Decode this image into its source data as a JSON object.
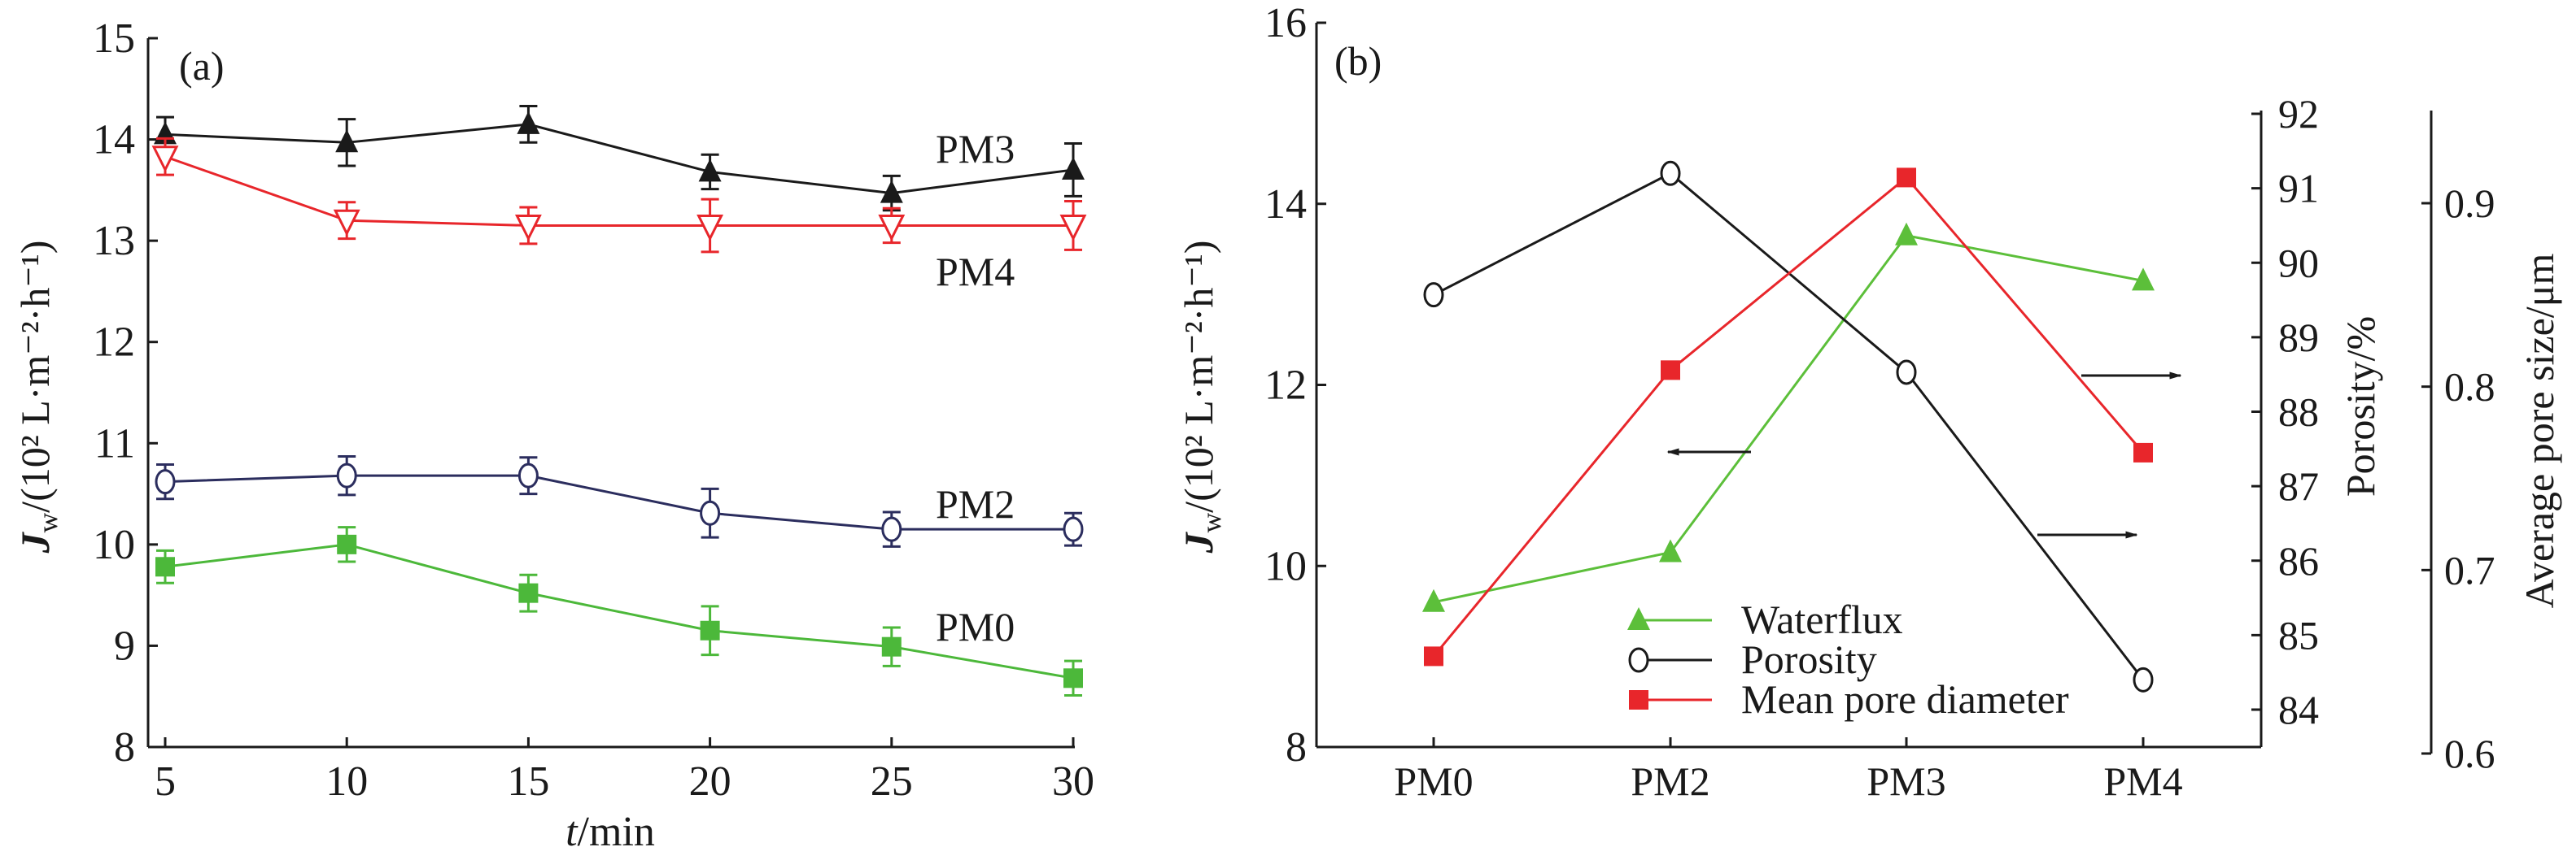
{
  "chart_data": [
    {
      "type": "line",
      "panel_label": "(a)",
      "xlabel_italic": "t",
      "xlabel_rest": "/min",
      "ylabel_italic": "J",
      "ylabel_sub": "w",
      "ylabel_rest": "/(10² L·m⁻²·h⁻¹)",
      "x": [
        5,
        10,
        15,
        20,
        25,
        30
      ],
      "xticks": [
        "5",
        "10",
        "15",
        "20",
        "25",
        "30"
      ],
      "ylim": [
        8,
        15
      ],
      "yticks": [
        "8",
        "9",
        "10",
        "11",
        "12",
        "13",
        "14",
        "15"
      ],
      "grid": false,
      "series": [
        {
          "name": "PM3",
          "color": "#1a1a1a",
          "marker": "triangle-up-filled",
          "values": [
            14.05,
            13.97,
            14.15,
            13.68,
            13.47,
            13.7
          ],
          "errors": [
            0.17,
            0.23,
            0.18,
            0.17,
            0.17,
            0.26
          ]
        },
        {
          "name": "PM4",
          "color": "#e8262b",
          "marker": "triangle-down-open",
          "values": [
            13.83,
            13.2,
            13.15,
            13.15,
            13.15,
            13.15
          ],
          "errors": [
            0.18,
            0.18,
            0.18,
            0.26,
            0.17,
            0.24
          ]
        },
        {
          "name": "PM2",
          "color": "#2b2d5e",
          "marker": "circle-open",
          "values": [
            10.62,
            10.68,
            10.68,
            10.31,
            10.15,
            10.15
          ],
          "errors": [
            0.17,
            0.19,
            0.18,
            0.24,
            0.17,
            0.16
          ]
        },
        {
          "name": "PM0",
          "color": "#4cb83a",
          "marker": "square-filled",
          "values": [
            9.78,
            10.0,
            9.52,
            9.15,
            8.99,
            8.68
          ],
          "errors": [
            0.16,
            0.17,
            0.18,
            0.24,
            0.19,
            0.17
          ]
        }
      ]
    },
    {
      "type": "line",
      "panel_label": "(b)",
      "categories": [
        "PM0",
        "PM2",
        "PM3",
        "PM4"
      ],
      "ylabel_italic": "J",
      "ylabel_sub": "w",
      "ylabel_rest": "/(10² L·m⁻²·h⁻¹)",
      "ylim": [
        8,
        16
      ],
      "yticks": [
        "8",
        "10",
        "12",
        "14",
        "16"
      ],
      "y2label": "Porosity/%",
      "y2lim": [
        84,
        92
      ],
      "y2ticks": [
        "84",
        "85",
        "86",
        "87",
        "88",
        "89",
        "90",
        "91",
        "92"
      ],
      "y3label": "Average pore size/μm",
      "y3lim": [
        0.6,
        0.9
      ],
      "y3ticks": [
        "0.6",
        "0.7",
        "0.8",
        "0.9"
      ],
      "legend_position": "bottom-center",
      "grid": false,
      "series": [
        {
          "name": "Waterflux",
          "axis": "left",
          "color": "#5cbf3a",
          "marker": "triangle-up-filled",
          "values": [
            9.6,
            10.15,
            13.65,
            13.15
          ]
        },
        {
          "name": "Porosity",
          "axis": "porosity",
          "color": "#1a1a1a",
          "marker": "circle-open",
          "values": [
            89.57,
            91.2,
            88.53,
            84.4
          ]
        },
        {
          "name": "Mean pore diameter",
          "axis": "pore-size",
          "color": "#e8262b",
          "marker": "square-filled",
          "values": [
            0.653,
            0.809,
            0.914,
            0.764
          ]
        }
      ]
    }
  ]
}
